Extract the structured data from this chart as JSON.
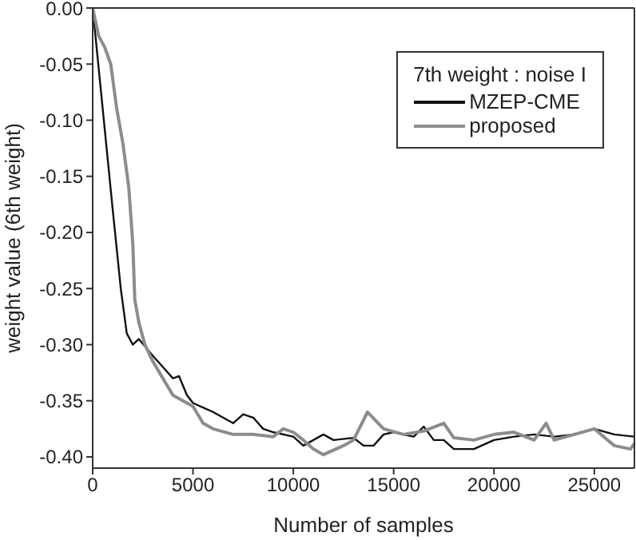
{
  "chart_data": {
    "type": "line",
    "xlabel": "Number of samples",
    "ylabel": "weight value (6th weight)",
    "legend_title": "7th weight : noise I",
    "legend": "top right",
    "grid": false,
    "line_style": "solid",
    "marker": "none",
    "xlim": [
      0,
      27000
    ],
    "xticks": [
      0,
      5000,
      10000,
      15000,
      20000,
      25000
    ],
    "ylim": [
      -0.41,
      0
    ],
    "yticks": [
      {
        "value": -0.4,
        "label": "-0.40"
      },
      {
        "value": -0.35,
        "label": "-0.35"
      },
      {
        "value": -0.3,
        "label": "-0.30"
      },
      {
        "value": -0.25,
        "label": "-0.25"
      },
      {
        "value": -0.2,
        "label": "-0.20"
      },
      {
        "value": -0.15,
        "label": "-0.15"
      },
      {
        "value": -0.1,
        "label": "-0.10"
      },
      {
        "value": -0.05,
        "label": "-0.05"
      },
      {
        "value": 0,
        "label": "0.00"
      }
    ],
    "series": [
      {
        "name": "MZEP-CME",
        "color": "#111111",
        "x": [
          0,
          500,
          1000,
          1400,
          1700,
          2000,
          2300,
          3000,
          3500,
          4000,
          4300,
          4700,
          5000,
          6000,
          7000,
          7500,
          8000,
          8500,
          9000,
          10000,
          10500,
          11000,
          11500,
          12000,
          13000,
          13500,
          14000,
          14500,
          15000,
          16000,
          16500,
          17000,
          17500,
          18000,
          19000,
          20000,
          21000,
          22000,
          23000,
          24000,
          25000,
          26000,
          27000
        ],
        "values": [
          0,
          -0.09,
          -0.18,
          -0.25,
          -0.29,
          -0.3,
          -0.295,
          -0.31,
          -0.32,
          -0.33,
          -0.328,
          -0.345,
          -0.352,
          -0.36,
          -0.37,
          -0.362,
          -0.365,
          -0.375,
          -0.378,
          -0.382,
          -0.39,
          -0.385,
          -0.38,
          -0.385,
          -0.383,
          -0.39,
          -0.39,
          -0.38,
          -0.378,
          -0.382,
          -0.373,
          -0.385,
          -0.385,
          -0.393,
          -0.393,
          -0.385,
          -0.382,
          -0.38,
          -0.382,
          -0.38,
          -0.375,
          -0.38,
          -0.382
        ]
      },
      {
        "name": "proposed",
        "color": "#8c8c8c",
        "x": [
          0,
          300,
          600,
          900,
          1200,
          1500,
          1800,
          2000,
          2100,
          2300,
          2600,
          3000,
          3500,
          4000,
          4500,
          5000,
          5500,
          6000,
          7000,
          8000,
          9000,
          9500,
          10000,
          10500,
          11000,
          11500,
          12500,
          13000,
          13700,
          14500,
          15500,
          16500,
          17500,
          18000,
          19000,
          20000,
          21000,
          22000,
          22600,
          23000,
          24000,
          25000,
          26000,
          26800,
          27000
        ],
        "values": [
          0,
          -0.025,
          -0.035,
          -0.05,
          -0.09,
          -0.12,
          -0.16,
          -0.21,
          -0.26,
          -0.28,
          -0.3,
          -0.315,
          -0.33,
          -0.345,
          -0.35,
          -0.355,
          -0.37,
          -0.375,
          -0.38,
          -0.38,
          -0.382,
          -0.375,
          -0.378,
          -0.385,
          -0.393,
          -0.398,
          -0.39,
          -0.385,
          -0.36,
          -0.375,
          -0.38,
          -0.377,
          -0.37,
          -0.383,
          -0.385,
          -0.38,
          -0.378,
          -0.385,
          -0.37,
          -0.385,
          -0.38,
          -0.375,
          -0.39,
          -0.393,
          -0.388
        ]
      }
    ]
  }
}
